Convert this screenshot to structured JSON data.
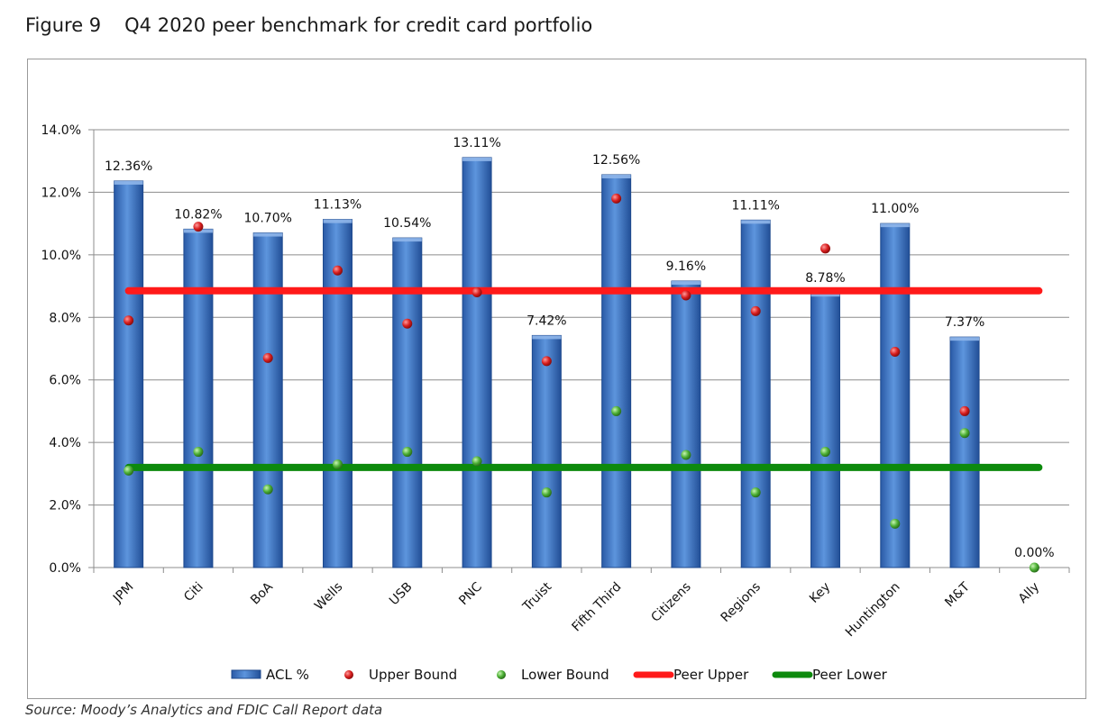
{
  "figure": {
    "number": "Figure 9",
    "title": "Q4 2020 peer benchmark for credit card portfolio"
  },
  "source": "Source: Moody’s Analytics and FDIC Call Report data",
  "colors": {
    "bar": "#3f74c4",
    "upper_bound": "#d81e1e",
    "lower_bound": "#4caf34",
    "peer_upper": "#ff1a1a",
    "peer_lower": "#0d8a0d",
    "grid": "#8c8c8c"
  },
  "chart_data": {
    "type": "bar",
    "categories": [
      "JPM",
      "Citi",
      "BoA",
      "Wells",
      "USB",
      "PNC",
      "Truist",
      "Fifth Third",
      "Citizens",
      "Regions",
      "Key",
      "Huntington",
      "M&T",
      "Ally"
    ],
    "series": [
      {
        "name": "ACL %",
        "type": "bar",
        "values": [
          12.36,
          10.82,
          10.7,
          11.13,
          10.54,
          13.11,
          7.42,
          12.56,
          9.16,
          11.11,
          8.78,
          11.0,
          7.37,
          0.0
        ]
      },
      {
        "name": "Upper Bound",
        "type": "scatter",
        "values": [
          7.9,
          10.9,
          6.7,
          9.5,
          7.8,
          8.8,
          6.6,
          11.8,
          8.7,
          8.2,
          10.2,
          6.9,
          5.0,
          null
        ]
      },
      {
        "name": "Lower Bound",
        "type": "scatter",
        "values": [
          3.1,
          3.7,
          2.5,
          3.3,
          3.7,
          3.4,
          2.4,
          5.0,
          3.6,
          2.4,
          3.7,
          1.4,
          4.3,
          0.0
        ]
      },
      {
        "name": "Peer Upper",
        "type": "line",
        "value": 8.85
      },
      {
        "name": "Peer Lower",
        "type": "line",
        "value": 3.2
      }
    ],
    "data_labels": [
      "12.36%",
      "10.82%",
      "10.70%",
      "11.13%",
      "10.54%",
      "13.11%",
      "7.42%",
      "12.56%",
      "9.16%",
      "11.11%",
      "8.78%",
      "11.00%",
      "7.37%",
      "0.00%"
    ],
    "yticks": [
      "0.0%",
      "2.0%",
      "4.0%",
      "6.0%",
      "8.0%",
      "10.0%",
      "12.0%",
      "14.0%"
    ],
    "ylim": [
      0,
      14
    ],
    "grid": true,
    "legend_position": "bottom",
    "xlabel": "",
    "ylabel": ""
  }
}
